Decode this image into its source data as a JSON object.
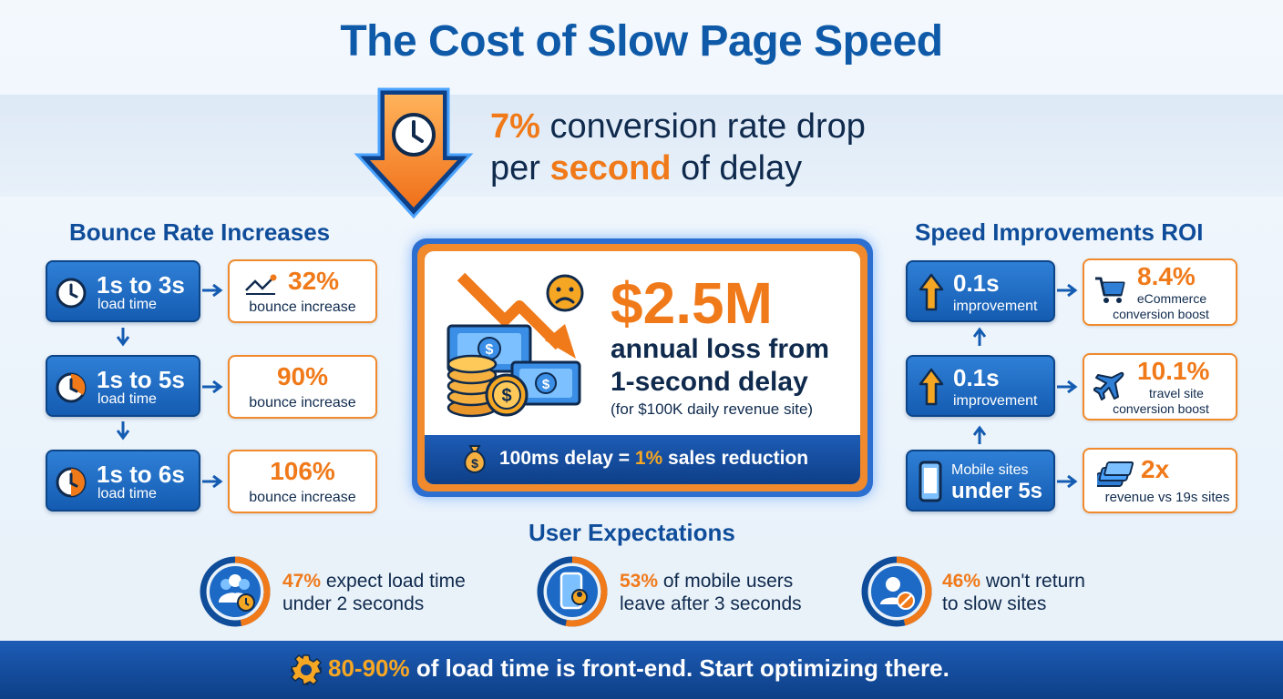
{
  "title": "The Cost of Slow Page Speed",
  "headline": {
    "pct": "7%",
    "line1_rest": " conversion rate drop",
    "line2_pre": "per ",
    "line2_highlight": "second",
    "line2_post": " of delay"
  },
  "bounce": {
    "title": "Bounce Rate Increases",
    "rows": [
      {
        "range": "1s to 3s",
        "sub": "load time",
        "pct": "32%",
        "label": "bounce increase"
      },
      {
        "range": "1s to 5s",
        "sub": "load time",
        "pct": "90%",
        "label": "bounce increase"
      },
      {
        "range": "1s to 6s",
        "sub": "load time",
        "pct": "106%",
        "label": "bounce increase"
      }
    ]
  },
  "center": {
    "amount": "$2.5M",
    "line1": "annual loss from",
    "line2": "1-second delay",
    "note": "(for $100K daily revenue site)",
    "footer_pre": "100ms delay = ",
    "footer_pct": "1%",
    "footer_post": " sales reduction"
  },
  "roi": {
    "title": "Speed Improvements ROI",
    "rows": [
      {
        "big": "0.1s",
        "sub": "improvement",
        "stat": "8.4%",
        "l1": "eCommerce",
        "l2": "conversion boost"
      },
      {
        "big": "0.1s",
        "sub": "improvement",
        "stat": "10.1%",
        "l1": "travel site",
        "l2": "conversion boost"
      },
      {
        "top": "Mobile sites",
        "bottom": "under 5s",
        "stat": "2x",
        "l1": "revenue vs 19s sites"
      }
    ]
  },
  "expectations": {
    "title": "User Expectations",
    "items": [
      {
        "pct": "47%",
        "rest": " expect load time",
        "line2": "under 2 seconds",
        "fill": 0.47
      },
      {
        "pct": "53%",
        "rest": " of mobile users",
        "line2": "leave after 3 seconds",
        "fill": 0.53
      },
      {
        "pct": "46%",
        "rest": " won't return",
        "line2": "to slow sites",
        "fill": 0.46
      }
    ]
  },
  "bottom": {
    "pct": "80-90%",
    "rest": " of load time is front-end. Start optimizing there."
  },
  "icons": [
    "clock-icon",
    "down-arrow-icon",
    "chart-icon",
    "money-icon",
    "sad-face-icon",
    "up-arrow-icon",
    "cart-icon",
    "plane-icon",
    "phone-icon",
    "cash-stack-icon",
    "users-icon",
    "user-block-icon",
    "gear-icon",
    "money-bag-icon"
  ],
  "colors": {
    "blue": "#0f5aa8",
    "orange": "#f07a1a",
    "navy": "#0f2a4d"
  }
}
